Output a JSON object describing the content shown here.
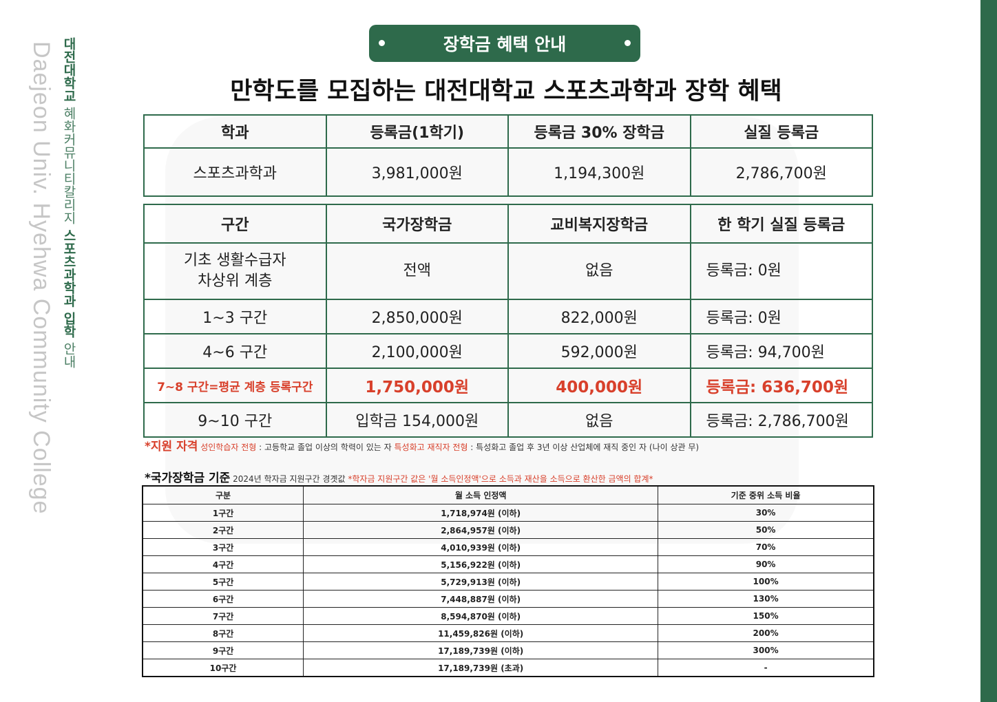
{
  "side": {
    "en": "Daejeon Univ. Hyehwa Community College",
    "kr_bold1": "대전대학교",
    "kr_light1": "혜화커뮤니티칼리지",
    "kr_bold2": "스포츠과학과 입학",
    "kr_light2": "안내"
  },
  "badge": {
    "title": "장학금 혜택 안내"
  },
  "main_title": "만학도를 모집하는 대전대학교 스포츠과학과 장학 혜택",
  "tuition_table": {
    "headers": [
      "학과",
      "등록금(1학기)",
      "등록금 30% 장학금",
      "실질 등록금"
    ],
    "row": [
      "스포츠과학과",
      "3,981,000원",
      "1,194,300원",
      "2,786,700원"
    ]
  },
  "bracket_table": {
    "headers": [
      "구간",
      "국가장학금",
      "교비복지장학금",
      "한 학기 실질 등록금"
    ],
    "rows": [
      {
        "c0a": "기초 생활수급자",
        "c0b": "차상위 계층",
        "c1": "전액",
        "c2": "없음",
        "c3": "등록금: 0원"
      },
      {
        "c0": "1~3 구간",
        "c1": "2,850,000원",
        "c2": "822,000원",
        "c3": "등록금: 0원"
      },
      {
        "c0": "4~6 구간",
        "c1": "2,100,000원",
        "c2": "592,000원",
        "c3": "등록금: 94,700원"
      },
      {
        "c0": "7~8 구간=평균 계층 등록구간",
        "c1": "1,750,000원",
        "c2": "400,000원",
        "c3": "등록금: 636,700원"
      },
      {
        "c0": "9~10 구간",
        "c1": "입학금 154,000원",
        "c2": "없음",
        "c3": "등록금: 2,786,700원"
      }
    ]
  },
  "eligibility": {
    "label": "*지원 자격",
    "type1": "성인학습자 전형",
    "desc1": " : 고등학교 졸업 이상의 학력이 있는 자 ",
    "type2": "특성화고 재직자 전형",
    "desc2": " : 특성화고 졸업 후 3년 이상 산업체에 재직 중인 자 (나이 상관 무)"
  },
  "national_criteria": {
    "label": "*국가장학금 기준",
    "sub": " 2024년 학자금 지원구간 경곗값 ",
    "note": " *학자금 지원구간 값은 '월 소득인정액'으로 소득과 재산을 소득으로 환산한 금액의 합계*"
  },
  "income_table": {
    "headers": [
      "구분",
      "월 소득 인정액",
      "기준 중위 소득 비율"
    ],
    "rows": [
      [
        "1구간",
        "1,718,974원 (이하)",
        "30%"
      ],
      [
        "2구간",
        "2,864,957원 (이하)",
        "50%"
      ],
      [
        "3구간",
        "4,010,939원 (이하)",
        "70%"
      ],
      [
        "4구간",
        "5,156,922원 (이하)",
        "90%"
      ],
      [
        "5구간",
        "5,729,913원 (이하)",
        "100%"
      ],
      [
        "6구간",
        "7,448,887원 (이하)",
        "130%"
      ],
      [
        "7구간",
        "8,594,870원 (이하)",
        "150%"
      ],
      [
        "8구간",
        "11,459,826원 (이하)",
        "200%"
      ],
      [
        "9구간",
        "17,189,739원 (이하)",
        "300%"
      ],
      [
        "10구간",
        "17,189,739원 (초과)",
        "-"
      ]
    ]
  },
  "colors": {
    "brand_green": "#2e6a4b",
    "highlight_red": "#d8402b"
  }
}
